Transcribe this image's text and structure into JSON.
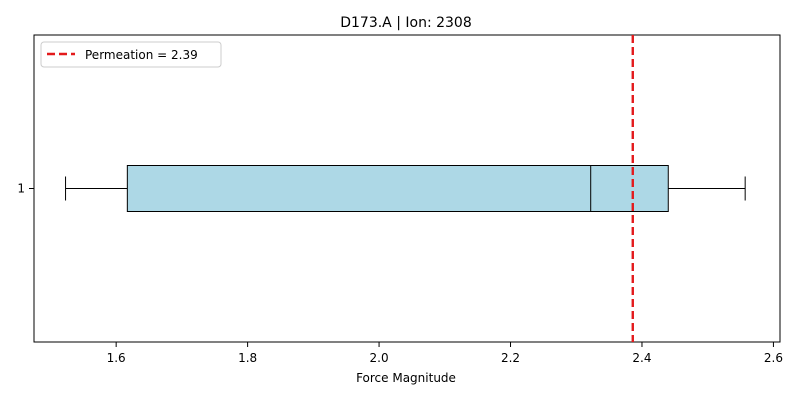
{
  "chart_data": {
    "type": "boxplot",
    "title": "D173.A | Ion: 2308",
    "xlabel": "Force Magnitude",
    "ylabel": "",
    "orientation": "horizontal",
    "xlim": [
      1.475,
      2.61
    ],
    "xticks": [
      "1.6",
      "1.8",
      "2.0",
      "2.2",
      "2.4",
      "2.6"
    ],
    "xtick_values": [
      1.6,
      1.8,
      2.0,
      2.2,
      2.4,
      2.6
    ],
    "yticks": [
      "1"
    ],
    "grid": false,
    "legend_position": "top-left",
    "boxes": [
      {
        "label": "1",
        "whisker_low": 1.523,
        "q1": 1.617,
        "median": 2.322,
        "q3": 2.44,
        "whisker_high": 2.557,
        "fill": "#add8e6"
      }
    ],
    "reference_line": {
      "label": "Permeation = 2.39",
      "value": 2.386,
      "color": "#e31a1c",
      "style": "dashed"
    }
  }
}
